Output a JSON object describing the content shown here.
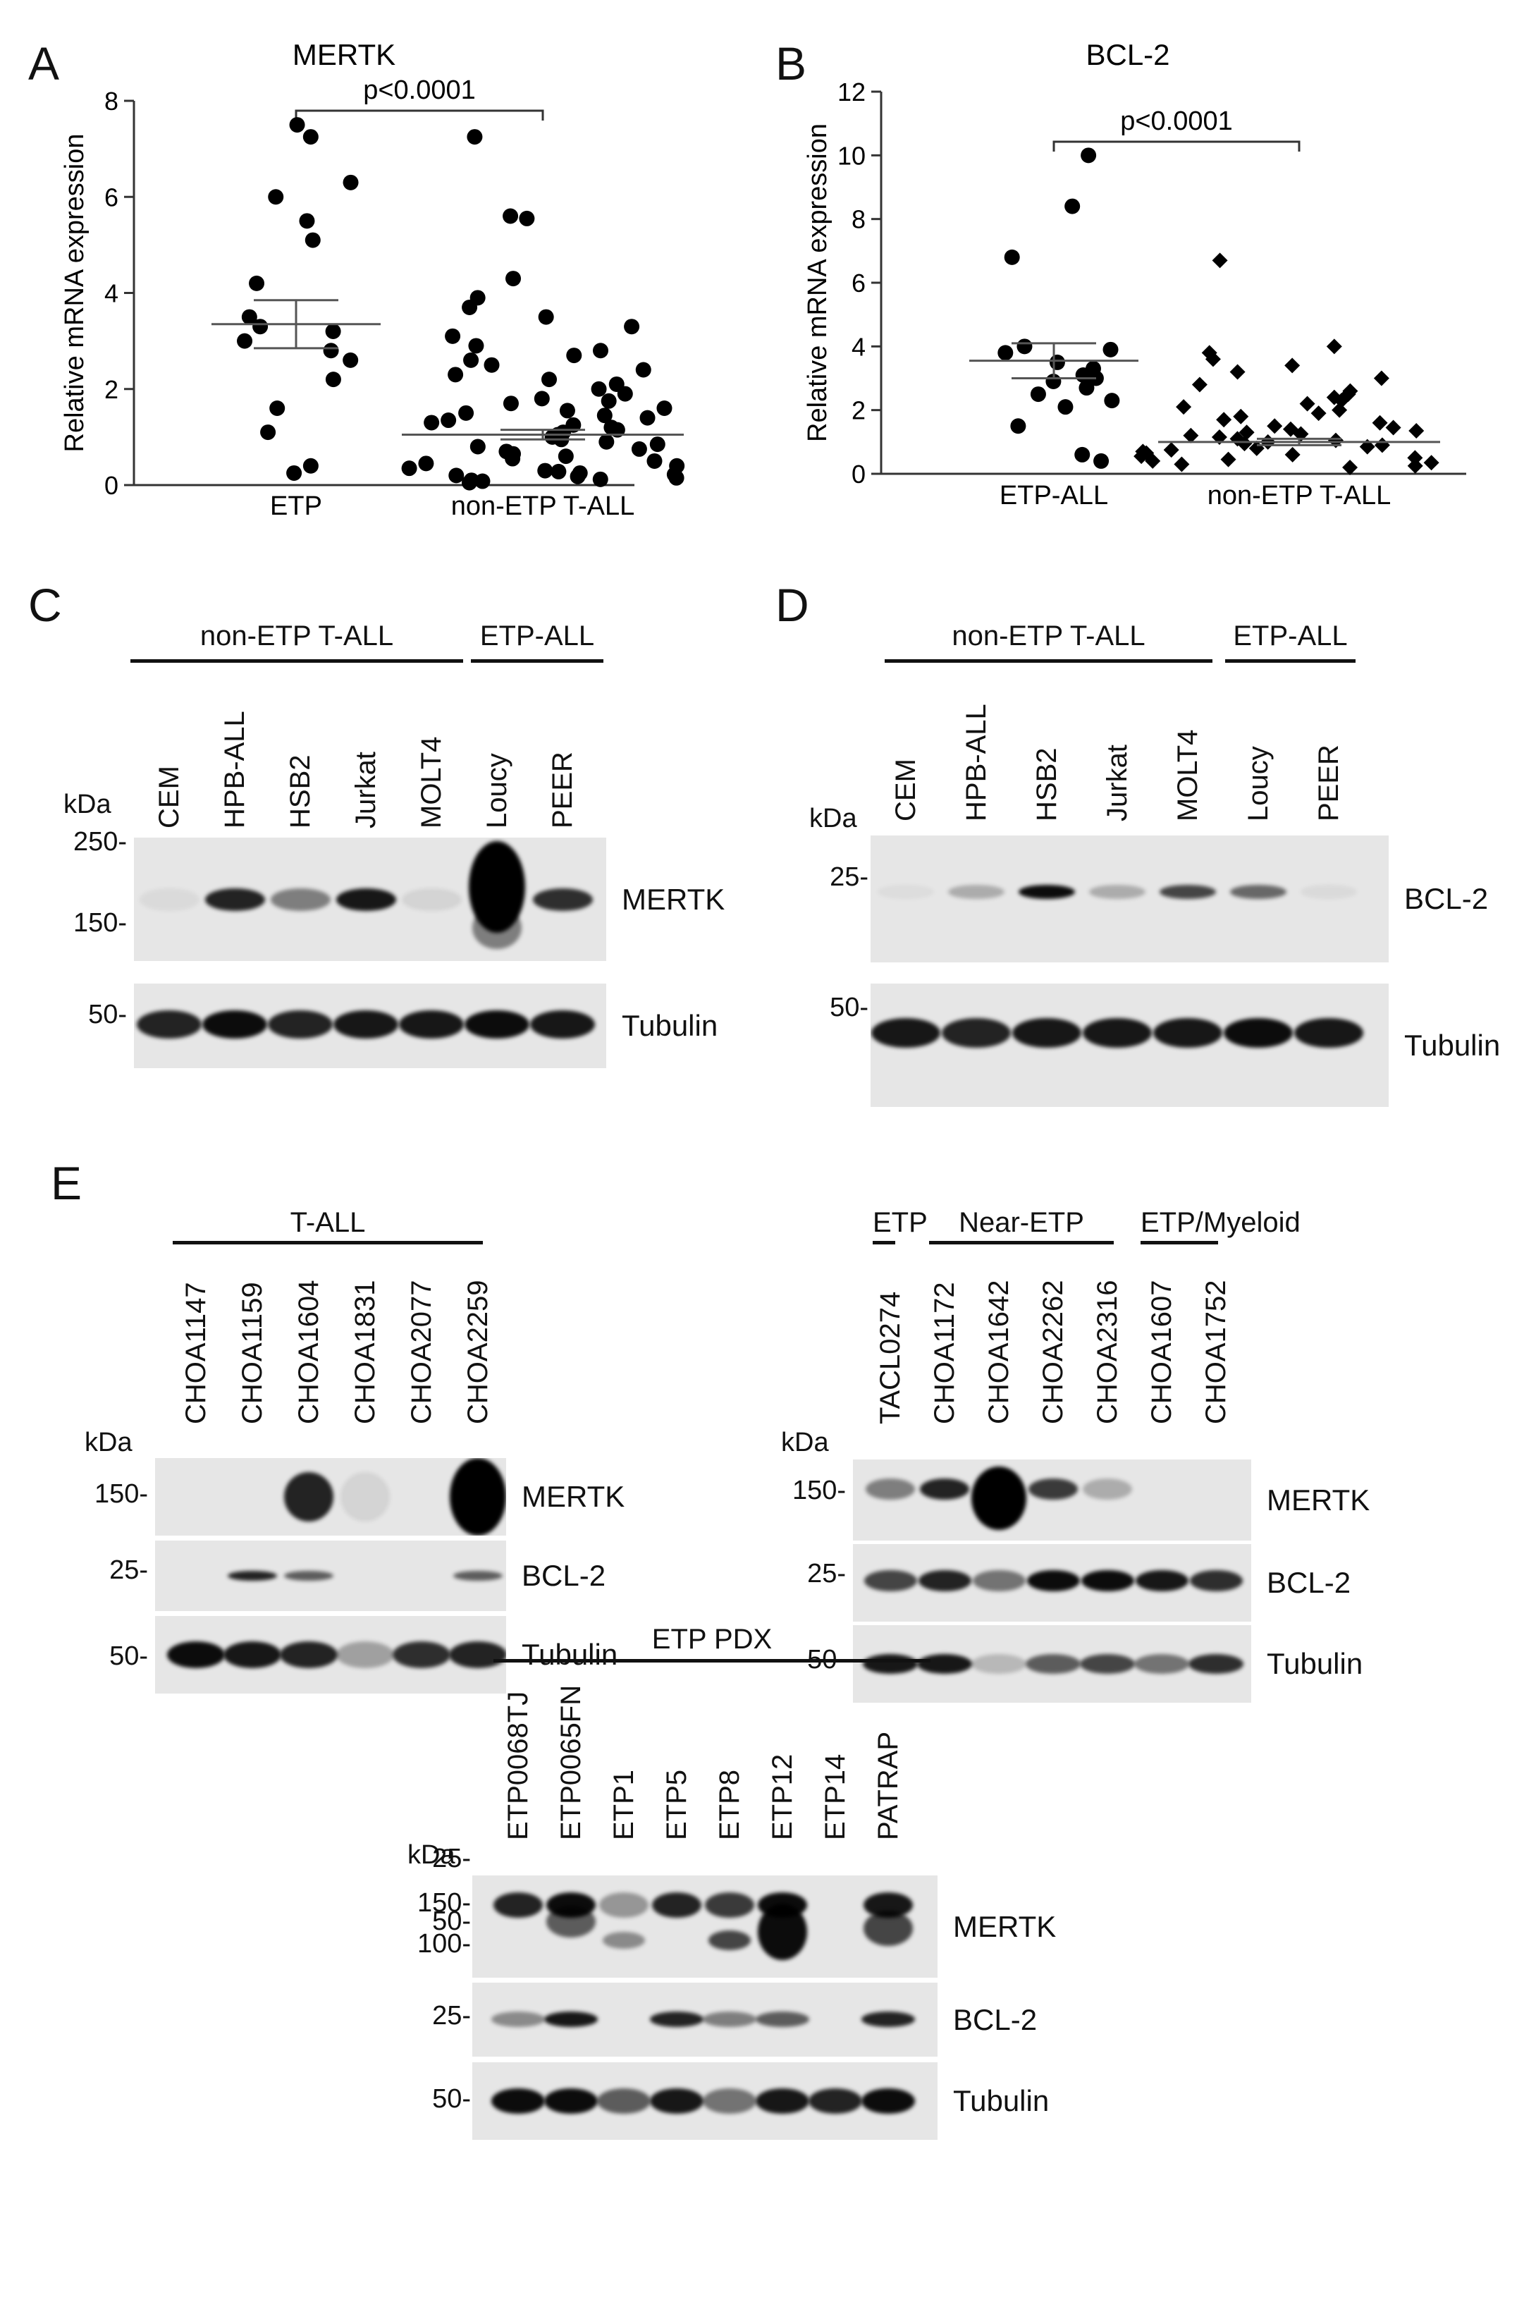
{
  "panel_letters": {
    "A": "A",
    "B": "B",
    "C": "C",
    "D": "D",
    "E": "E"
  },
  "chart_data": [
    {
      "type": "scatter",
      "title": "MERTK",
      "ylabel": "Relative mRNA expression",
      "categories": [
        "ETP",
        "non-ETP T-ALL"
      ],
      "ylim": [
        0,
        8
      ],
      "yticks": [
        "0",
        "2",
        "4",
        "6",
        "8"
      ],
      "annotation": "p<0.0001",
      "series": [
        {
          "values": [
            7.5,
            7.25,
            6.3,
            6.0,
            5.5,
            5.1,
            4.2,
            3.5,
            3.3,
            3.2,
            3.0,
            2.8,
            2.6,
            2.2,
            1.6,
            1.1,
            0.4,
            0.25
          ],
          "mean": 3.35,
          "sem": [
            2.85,
            3.85
          ]
        },
        {
          "values": [
            7.25,
            5.6,
            5.55,
            4.3,
            3.9,
            3.7,
            3.5,
            3.3,
            3.1,
            2.9,
            2.8,
            2.7,
            2.6,
            2.5,
            2.4,
            2.3,
            2.2,
            2.1,
            2.0,
            1.9,
            1.8,
            1.75,
            1.7,
            1.6,
            1.55,
            1.5,
            1.45,
            1.4,
            1.35,
            1.3,
            1.25,
            1.2,
            1.15,
            1.1,
            1.05,
            1.0,
            0.95,
            0.9,
            0.85,
            0.8,
            0.75,
            0.7,
            0.65,
            0.6,
            0.55,
            0.5,
            0.45,
            0.4,
            0.35,
            0.3,
            0.28,
            0.25,
            0.22,
            0.2,
            0.18,
            0.15,
            0.12,
            0.1,
            0.08,
            0.05
          ],
          "mean": 1.05,
          "sem": [
            0.95,
            1.15
          ]
        }
      ]
    },
    {
      "type": "scatter",
      "title": "BCL-2",
      "ylabel": "Relative mRNA expression",
      "categories": [
        "ETP-ALL",
        "non-ETP T-ALL"
      ],
      "ylim": [
        0,
        12
      ],
      "yticks": [
        "0",
        "2",
        "4",
        "6",
        "8",
        "10",
        "12"
      ],
      "annotation": "p<0.0001",
      "series": [
        {
          "values": [
            10.0,
            8.4,
            6.8,
            4.0,
            3.9,
            3.8,
            3.5,
            3.3,
            3.1,
            3.0,
            2.9,
            2.7,
            2.5,
            2.3,
            2.1,
            1.5,
            0.6,
            0.4
          ],
          "mean": 3.55,
          "sem": [
            3.0,
            4.1
          ]
        },
        {
          "values": [
            6.7,
            4.0,
            3.8,
            3.6,
            3.4,
            3.2,
            3.0,
            2.8,
            2.6,
            2.5,
            2.4,
            2.3,
            2.2,
            2.1,
            2.0,
            1.9,
            1.8,
            1.7,
            1.6,
            1.5,
            1.45,
            1.4,
            1.35,
            1.3,
            1.25,
            1.2,
            1.15,
            1.1,
            1.05,
            1.0,
            0.95,
            0.9,
            0.85,
            0.8,
            0.75,
            0.7,
            0.65,
            0.6,
            0.55,
            0.5,
            0.45,
            0.4,
            0.35,
            0.3,
            0.25,
            0.2
          ],
          "mean": 1.0,
          "sem": [
            0.9,
            1.1
          ]
        }
      ]
    }
  ],
  "blot_C": {
    "groups": [
      "non-ETP T-ALL",
      "ETP-ALL"
    ],
    "lanes": [
      "CEM",
      "HPB-ALL",
      "HSB2",
      "Jurkat",
      "MOLT4",
      "Loucy",
      "PEER"
    ],
    "kda": "kDa",
    "markers_top": [
      "250-",
      "150-"
    ],
    "markers_bottom": [
      "50-"
    ],
    "labels": [
      "MERTK",
      "Tubulin"
    ]
  },
  "blot_D": {
    "groups": [
      "non-ETP T-ALL",
      "ETP-ALL"
    ],
    "lanes": [
      "CEM",
      "HPB-ALL",
      "HSB2",
      "Jurkat",
      "MOLT4",
      "Loucy",
      "PEER"
    ],
    "kda": "kDa",
    "markers_top": [
      "25-"
    ],
    "markers_bottom": [
      "50-"
    ],
    "labels": [
      "BCL-2",
      "Tubulin"
    ]
  },
  "blot_E1": {
    "groups": [
      "T-ALL"
    ],
    "lanes": [
      "CHOA1147",
      "CHOA1159",
      "CHOA1604",
      "CHOA1831",
      "CHOA2077",
      "CHOA2259"
    ],
    "kda": "kDa",
    "markers": [
      "150-",
      "25-",
      "50-"
    ],
    "labels": [
      "MERTK",
      "BCL-2",
      "Tubulin"
    ]
  },
  "blot_E2": {
    "groups": [
      "ETP",
      "Near-ETP",
      "ETP/Myeloid"
    ],
    "lanes": [
      "TACL0274",
      "CHOA1172",
      "CHOA1642",
      "CHOA2262",
      "CHOA2316",
      "CHOA1607",
      "CHOA1752"
    ],
    "kda": "kDa",
    "markers": [
      "150-",
      "25-",
      "50-"
    ],
    "labels": [
      "MERTK",
      "BCL-2",
      "Tubulin"
    ]
  },
  "blot_E3": {
    "groups": [
      "ETP PDX"
    ],
    "lanes": [
      "ETP0068TJ",
      "ETP0065FN",
      "ETP1",
      "ETP5",
      "ETP8",
      "ETP12",
      "ETP14",
      "PATRAP"
    ],
    "kda": "kDa",
    "markers": [
      "150-",
      "100-",
      "25-",
      "50-"
    ],
    "labels": [
      "MERTK",
      "BCL-2",
      "Tubulin"
    ]
  }
}
